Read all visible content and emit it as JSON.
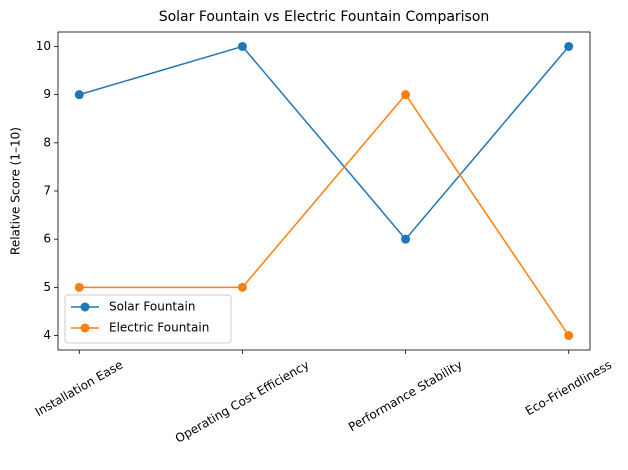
{
  "chart_data": {
    "type": "line",
    "title": "Solar Fountain vs Electric Fountain Comparison",
    "ylabel": "Relative Score (1–10)",
    "categories": [
      "Installation Ease",
      "Operating Cost Efficiency",
      "Performance Stability",
      "Eco-Friendliness"
    ],
    "series": [
      {
        "name": "Solar Fountain",
        "color": "#1f77b4",
        "values": [
          9,
          10,
          6,
          10
        ]
      },
      {
        "name": "Electric Fountain",
        "color": "#ff7f0e",
        "values": [
          5,
          5,
          9,
          4
        ]
      }
    ],
    "ylim": [
      3.7,
      10.3
    ],
    "yticks": [
      4,
      5,
      6,
      7,
      8,
      9,
      10
    ],
    "legend": "lower left",
    "grid": false
  }
}
